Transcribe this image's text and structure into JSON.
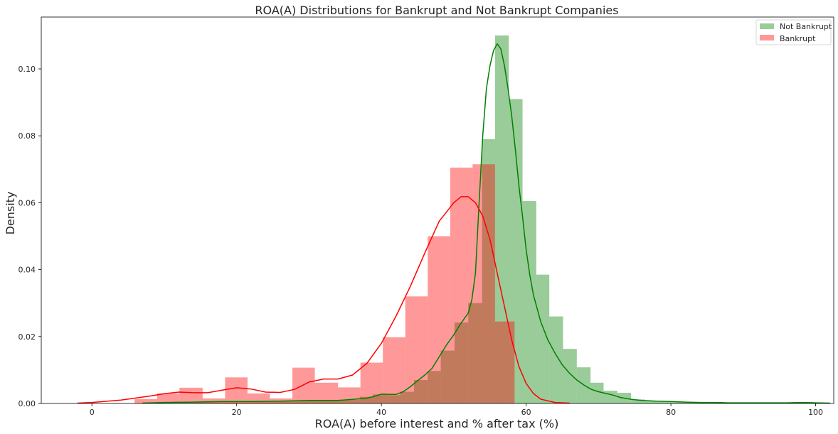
{
  "chart_data": {
    "type": "histogram",
    "title": "ROA(A) Distributions for Bankrupt and Not Bankrupt Companies",
    "xlabel": "ROA(A) before interest and % after tax (%)",
    "ylabel": "Density",
    "xlim": [
      -7,
      102.5
    ],
    "ylim": [
      0,
      0.1155
    ],
    "xticks": [
      0,
      20,
      40,
      60,
      80,
      100
    ],
    "xtick_labels": [
      "0",
      "20",
      "40",
      "60",
      "80",
      "100"
    ],
    "yticks": [
      0,
      0.02,
      0.04,
      0.06,
      0.08,
      0.1
    ],
    "ytick_labels": [
      "0.00",
      "0.02",
      "0.04",
      "0.06",
      "0.08",
      "0.10"
    ],
    "legend_position": "top-right",
    "grid": false,
    "series": [
      {
        "name": "Not Bankrupt",
        "color": "#008000",
        "alpha": 0.4,
        "bins": [
          [
            7,
            0.0003
          ],
          [
            10,
            0.0003
          ],
          [
            13,
            0.0004
          ],
          [
            16,
            0.0005
          ],
          [
            19,
            0.0006
          ],
          [
            22,
            0.0006
          ],
          [
            25,
            0.0008
          ],
          [
            28,
            0.0009
          ],
          [
            31,
            0.001
          ],
          [
            34,
            0.0011
          ],
          [
            37,
            0.002
          ],
          [
            38.8,
            0.0027
          ],
          [
            40.7,
            0.0025
          ],
          [
            42.6,
            0.0035
          ],
          [
            44.5,
            0.007
          ],
          [
            46.4,
            0.0097
          ],
          [
            48.2,
            0.0158
          ],
          [
            50.1,
            0.0242
          ],
          [
            52.0,
            0.03
          ],
          [
            53.9,
            0.079
          ],
          [
            55.7,
            0.11
          ],
          [
            57.6,
            0.091
          ],
          [
            59.5,
            0.0605
          ],
          [
            61.4,
            0.0385
          ],
          [
            63.2,
            0.026
          ],
          [
            65.1,
            0.0163
          ],
          [
            67.0,
            0.0108
          ],
          [
            68.9,
            0.0062
          ],
          [
            70.7,
            0.0038
          ],
          [
            72.6,
            0.0032
          ],
          [
            74.5,
            0.0012
          ],
          [
            76.4,
            0.0008
          ],
          [
            78.2,
            0.0005
          ],
          [
            80.1,
            0.0004
          ],
          [
            82.0,
            0.0003
          ],
          [
            83.8,
            0.0002
          ],
          [
            85.7,
            0.0002
          ],
          [
            87.6,
            0.0002
          ],
          [
            89.5,
            0.0001
          ],
          [
            91.3,
            0.0001
          ],
          [
            93.2,
            0.0001
          ],
          [
            95.1,
            0.0001
          ],
          [
            97.0,
            0.0001
          ],
          [
            98.8,
            0.0001
          ],
          [
            100.7,
            0
          ]
        ],
        "kde_x": [
          7,
          10,
          14,
          18,
          22,
          26,
          30,
          32,
          34,
          36,
          38,
          39,
          40,
          41,
          42,
          43,
          44,
          45,
          46,
          47,
          48,
          49,
          50,
          51,
          52,
          52.5,
          53,
          53.5,
          54,
          54.5,
          55,
          55.5,
          56,
          56.5,
          57,
          57.5,
          58,
          58.5,
          59,
          59.5,
          60,
          60.5,
          61,
          62,
          63,
          64,
          65,
          66,
          67,
          68,
          69,
          70,
          71,
          72,
          73,
          74,
          75,
          76,
          77,
          78,
          80,
          82,
          84,
          86,
          88,
          90,
          92,
          94,
          96,
          98,
          100,
          102
        ],
        "kde_y": [
          0.0001,
          0.0003,
          0.0004,
          0.0006,
          0.0006,
          0.0007,
          0.0009,
          0.0009,
          0.0009,
          0.0012,
          0.0016,
          0.0021,
          0.0028,
          0.0027,
          0.0027,
          0.0035,
          0.005,
          0.0068,
          0.0085,
          0.0105,
          0.014,
          0.0175,
          0.0205,
          0.024,
          0.027,
          0.031,
          0.039,
          0.06,
          0.08,
          0.094,
          0.101,
          0.1055,
          0.1075,
          0.106,
          0.101,
          0.094,
          0.086,
          0.076,
          0.065,
          0.056,
          0.046,
          0.0385,
          0.0325,
          0.0245,
          0.019,
          0.015,
          0.0115,
          0.009,
          0.007,
          0.0055,
          0.0042,
          0.0035,
          0.003,
          0.0025,
          0.0018,
          0.0014,
          0.0011,
          0.0009,
          0.0008,
          0.0007,
          0.0006,
          0.0004,
          0.0003,
          0.0003,
          0.0002,
          0.0002,
          0.0002,
          0.0002,
          0.0002,
          0.0003,
          0.0002,
          0.0001
        ]
      },
      {
        "name": "Bankrupt",
        "color": "#ff0000",
        "alpha": 0.4,
        "bins": [
          [
            5.9,
            0.0013
          ],
          [
            9.0,
            0.003
          ],
          [
            12.1,
            0.0047
          ],
          [
            15.3,
            0.0015
          ],
          [
            18.4,
            0.0078
          ],
          [
            21.5,
            0.003
          ],
          [
            24.6,
            0.0015
          ],
          [
            27.7,
            0.0107
          ],
          [
            30.8,
            0.0062
          ],
          [
            34.0,
            0.0048
          ],
          [
            37.1,
            0.0122
          ],
          [
            40.2,
            0.0198
          ],
          [
            43.3,
            0.032
          ],
          [
            46.4,
            0.05
          ],
          [
            49.5,
            0.0705
          ],
          [
            52.6,
            0.0715
          ],
          [
            55.7,
            0.0245
          ],
          [
            58.4,
            0
          ]
        ],
        "kde_x": [
          -2,
          0,
          4,
          8,
          10,
          12,
          14,
          16,
          18,
          20,
          22,
          24,
          26,
          28,
          30,
          32,
          34,
          36,
          38,
          40,
          42,
          44,
          46,
          48,
          50,
          51,
          52,
          53,
          54,
          55,
          56,
          57,
          58,
          59,
          60,
          61,
          62,
          64,
          66
        ],
        "kde_y": [
          0.0001,
          0.0003,
          0.001,
          0.0022,
          0.0029,
          0.0034,
          0.0032,
          0.0032,
          0.004,
          0.0047,
          0.0043,
          0.0034,
          0.0033,
          0.0042,
          0.0064,
          0.0073,
          0.0073,
          0.0085,
          0.012,
          0.018,
          0.026,
          0.035,
          0.045,
          0.0545,
          0.06,
          0.0618,
          0.0618,
          0.06,
          0.056,
          0.049,
          0.039,
          0.029,
          0.019,
          0.011,
          0.006,
          0.003,
          0.0013,
          0.0003,
          0.0001
        ]
      }
    ]
  }
}
